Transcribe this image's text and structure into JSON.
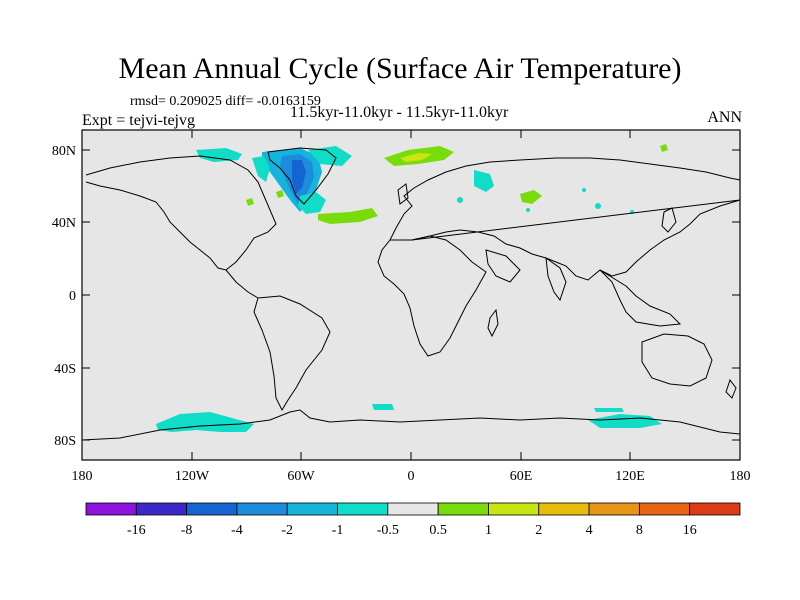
{
  "title": "Mean Annual Cycle (Surface Air Temperature)",
  "stats_line": "rmsd= 0.209025 diff= -0.0163159",
  "experiment_line": "Expt = tejvi-tejvg",
  "subtitle": "11.5kyr-11.0kyr - 11.5kyr-11.0kyr",
  "season": "ANN",
  "axes": {
    "lat_labels": [
      "80N",
      "40N",
      "0",
      "40S",
      "80S"
    ],
    "lon_labels": [
      "180",
      "120W",
      "60W",
      "0",
      "60E",
      "120E",
      "180"
    ]
  },
  "colorbar": {
    "colors": [
      "#8c14dc",
      "#3c28c8",
      "#1464d2",
      "#1e8cdc",
      "#14b4dc",
      "#10dcc8",
      "#e6e6e6",
      "#78dc0a",
      "#c8e614",
      "#e6be0a",
      "#e69614",
      "#e66414",
      "#dc3c14"
    ],
    "labels": [
      "-16",
      "-8",
      "-4",
      "-2",
      "-1",
      "-0.5",
      "0.5",
      "1",
      "2",
      "4",
      "8",
      "16"
    ]
  },
  "colors": {
    "ocean_land_fill": "#e6e6e6",
    "frame": "#000000"
  }
}
